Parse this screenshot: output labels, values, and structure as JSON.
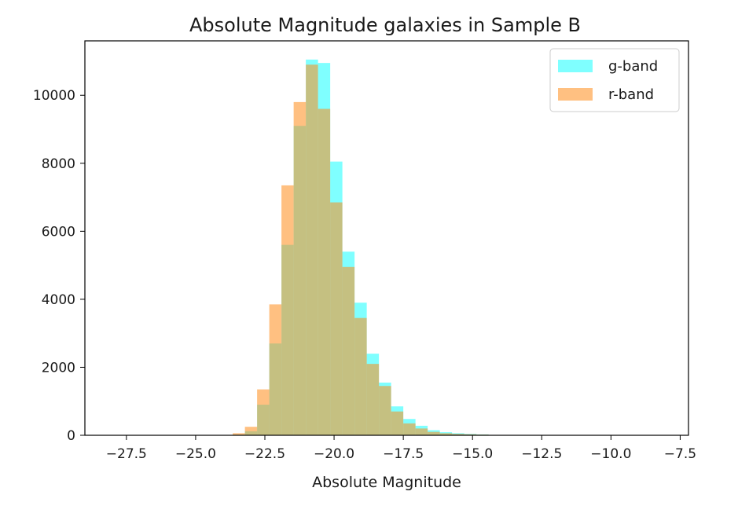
{
  "chart_data": {
    "type": "bar",
    "title": "Absolute Magnitude galaxies in Sample B",
    "xlabel": "Absolute Magnitude",
    "ylabel": "",
    "xlim": [
      -29.0,
      -7.2
    ],
    "ylim": [
      0,
      11600
    ],
    "xticks": [
      -27.5,
      -25.0,
      -22.5,
      -20.0,
      -17.5,
      -15.0,
      -12.5,
      -10.0,
      -7.5
    ],
    "xtick_labels": [
      "−27.5",
      "−25.0",
      "−22.5",
      "−20.0",
      "−17.5",
      "−15.0",
      "−12.5",
      "−10.0",
      "−7.5"
    ],
    "yticks": [
      0,
      2000,
      4000,
      6000,
      8000,
      10000
    ],
    "ytick_labels": [
      "0",
      "2000",
      "4000",
      "6000",
      "8000",
      "10000"
    ],
    "grid": false,
    "legend_position": "top-right",
    "series": [
      {
        "name": "g-band",
        "color": "#00ffff",
        "opacity": 0.5,
        "bins": [
          [
            -28.5,
            -28.06,
            0
          ],
          [
            -28.06,
            -27.62,
            0
          ],
          [
            -27.62,
            -27.18,
            0
          ],
          [
            -27.18,
            -26.74,
            0
          ],
          [
            -26.74,
            -26.3,
            0
          ],
          [
            -26.3,
            -25.86,
            0
          ],
          [
            -25.86,
            -25.42,
            0
          ],
          [
            -25.42,
            -24.98,
            0
          ],
          [
            -24.98,
            -24.54,
            0
          ],
          [
            -24.54,
            -24.1,
            0
          ],
          [
            -24.1,
            -23.66,
            0
          ],
          [
            -23.66,
            -23.22,
            20
          ],
          [
            -23.22,
            -22.78,
            120
          ],
          [
            -22.78,
            -22.34,
            900
          ],
          [
            -22.34,
            -21.9,
            2700
          ],
          [
            -21.9,
            -21.46,
            5600
          ],
          [
            -21.46,
            -21.02,
            9100
          ],
          [
            -21.02,
            -20.58,
            11050
          ],
          [
            -20.58,
            -20.14,
            10950
          ],
          [
            -20.14,
            -19.7,
            8050
          ],
          [
            -19.7,
            -19.26,
            5400
          ],
          [
            -19.26,
            -18.82,
            3900
          ],
          [
            -18.82,
            -18.38,
            2400
          ],
          [
            -18.38,
            -17.94,
            1550
          ],
          [
            -17.94,
            -17.5,
            850
          ],
          [
            -17.5,
            -17.06,
            480
          ],
          [
            -17.06,
            -16.62,
            280
          ],
          [
            -16.62,
            -16.18,
            150
          ],
          [
            -16.18,
            -15.74,
            90
          ],
          [
            -15.74,
            -15.3,
            60
          ],
          [
            -15.3,
            -14.86,
            40
          ],
          [
            -14.86,
            -14.42,
            25
          ],
          [
            -14.42,
            -13.98,
            10
          ],
          [
            -13.98,
            -13.54,
            0
          ],
          [
            -13.54,
            -13.1,
            0
          ],
          [
            -13.1,
            -12.66,
            0
          ],
          [
            -12.66,
            -12.22,
            0
          ],
          [
            -12.22,
            -11.78,
            0
          ],
          [
            -11.78,
            -11.34,
            0
          ],
          [
            -11.34,
            -10.9,
            0
          ],
          [
            -10.9,
            -10.46,
            0
          ],
          [
            -10.46,
            -10.02,
            0
          ],
          [
            -10.02,
            -9.58,
            0
          ],
          [
            -9.58,
            -9.14,
            0
          ],
          [
            -9.14,
            -8.7,
            0
          ],
          [
            -8.7,
            -8.26,
            0
          ],
          [
            -8.26,
            -7.82,
            0
          ]
        ]
      },
      {
        "name": "r-band",
        "color": "#ff8c1a",
        "opacity": 0.55,
        "bins": [
          [
            -28.5,
            -28.06,
            0
          ],
          [
            -28.06,
            -27.62,
            0
          ],
          [
            -27.62,
            -27.18,
            0
          ],
          [
            -27.18,
            -26.74,
            0
          ],
          [
            -26.74,
            -26.3,
            0
          ],
          [
            -26.3,
            -25.86,
            0
          ],
          [
            -25.86,
            -25.42,
            0
          ],
          [
            -25.42,
            -24.98,
            0
          ],
          [
            -24.98,
            -24.54,
            0
          ],
          [
            -24.54,
            -24.1,
            0
          ],
          [
            -24.1,
            -23.66,
            0
          ],
          [
            -23.66,
            -23.22,
            60
          ],
          [
            -23.22,
            -22.78,
            250
          ],
          [
            -22.78,
            -22.34,
            1350
          ],
          [
            -22.34,
            -21.9,
            3850
          ],
          [
            -21.9,
            -21.46,
            7350
          ],
          [
            -21.46,
            -21.02,
            9800
          ],
          [
            -21.02,
            -20.58,
            10900
          ],
          [
            -20.58,
            -20.14,
            9600
          ],
          [
            -20.14,
            -19.7,
            6850
          ],
          [
            -19.7,
            -19.26,
            4950
          ],
          [
            -19.26,
            -18.82,
            3450
          ],
          [
            -18.82,
            -18.38,
            2100
          ],
          [
            -18.38,
            -17.94,
            1450
          ],
          [
            -17.94,
            -17.5,
            700
          ],
          [
            -17.5,
            -17.06,
            350
          ],
          [
            -17.06,
            -16.62,
            200
          ],
          [
            -16.62,
            -16.18,
            100
          ],
          [
            -16.18,
            -15.74,
            60
          ],
          [
            -15.74,
            -15.3,
            40
          ],
          [
            -15.3,
            -14.86,
            30
          ],
          [
            -14.86,
            -14.42,
            20
          ],
          [
            -14.42,
            -13.98,
            10
          ],
          [
            -13.98,
            -13.54,
            0
          ],
          [
            -13.54,
            -13.1,
            0
          ],
          [
            -13.1,
            -12.66,
            0
          ],
          [
            -12.66,
            -12.22,
            0
          ],
          [
            -12.22,
            -11.78,
            0
          ],
          [
            -11.78,
            -11.34,
            0
          ],
          [
            -11.34,
            -10.9,
            0
          ],
          [
            -10.9,
            -10.46,
            0
          ],
          [
            -10.46,
            -10.02,
            0
          ],
          [
            -10.02,
            -9.58,
            0
          ],
          [
            -9.58,
            -9.14,
            0
          ],
          [
            -9.14,
            -8.7,
            0
          ],
          [
            -8.7,
            -8.26,
            0
          ],
          [
            -8.26,
            -7.82,
            0
          ]
        ]
      }
    ]
  }
}
